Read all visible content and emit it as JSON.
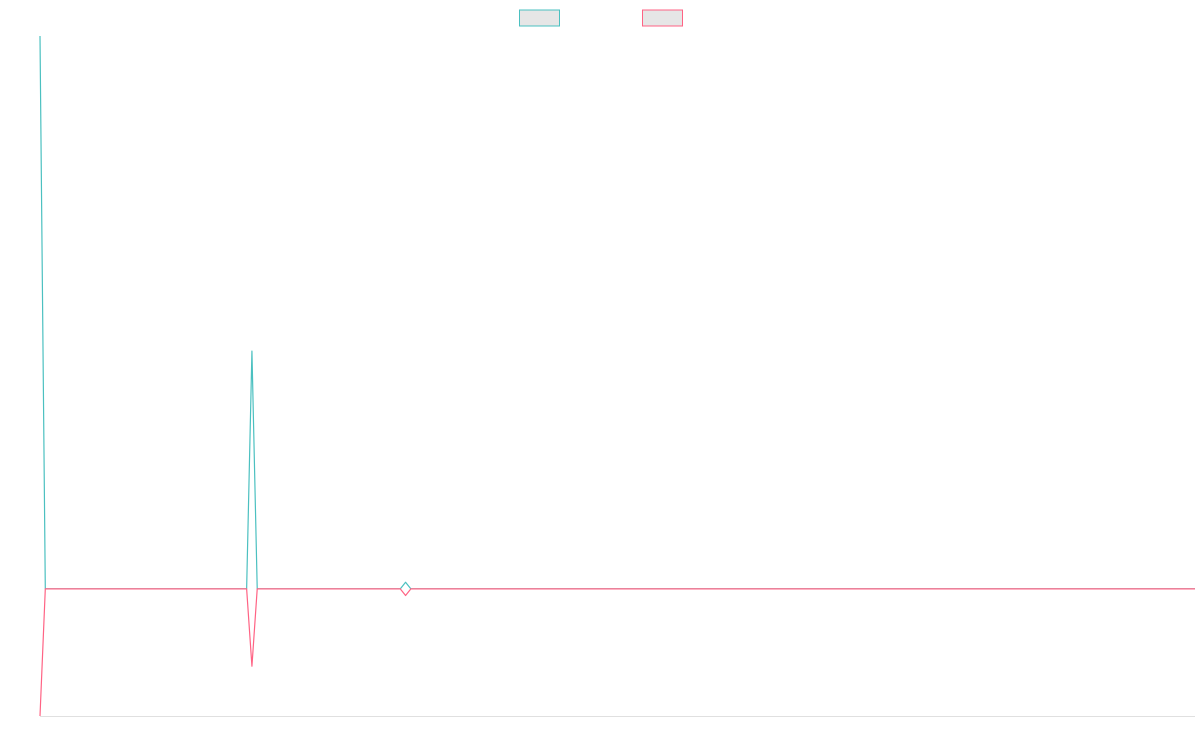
{
  "chart_data": {
    "type": "line",
    "x": [
      0,
      1,
      39,
      40,
      41,
      68,
      69,
      70,
      218
    ],
    "xlim": [
      0,
      218
    ],
    "ylim": [
      -23,
      100
    ],
    "legend": "top",
    "series": [
      {
        "color": "#4bc0c0",
        "legend_fill": "#e6e6e6",
        "values": [
          100,
          0,
          0,
          43,
          0,
          0,
          1.2,
          0,
          0
        ]
      },
      {
        "color": "#ff6384",
        "legend_fill": "#e6e6e6",
        "values": [
          -23,
          0,
          0,
          -14,
          0,
          0,
          -1.2,
          0,
          0
        ]
      }
    ]
  }
}
